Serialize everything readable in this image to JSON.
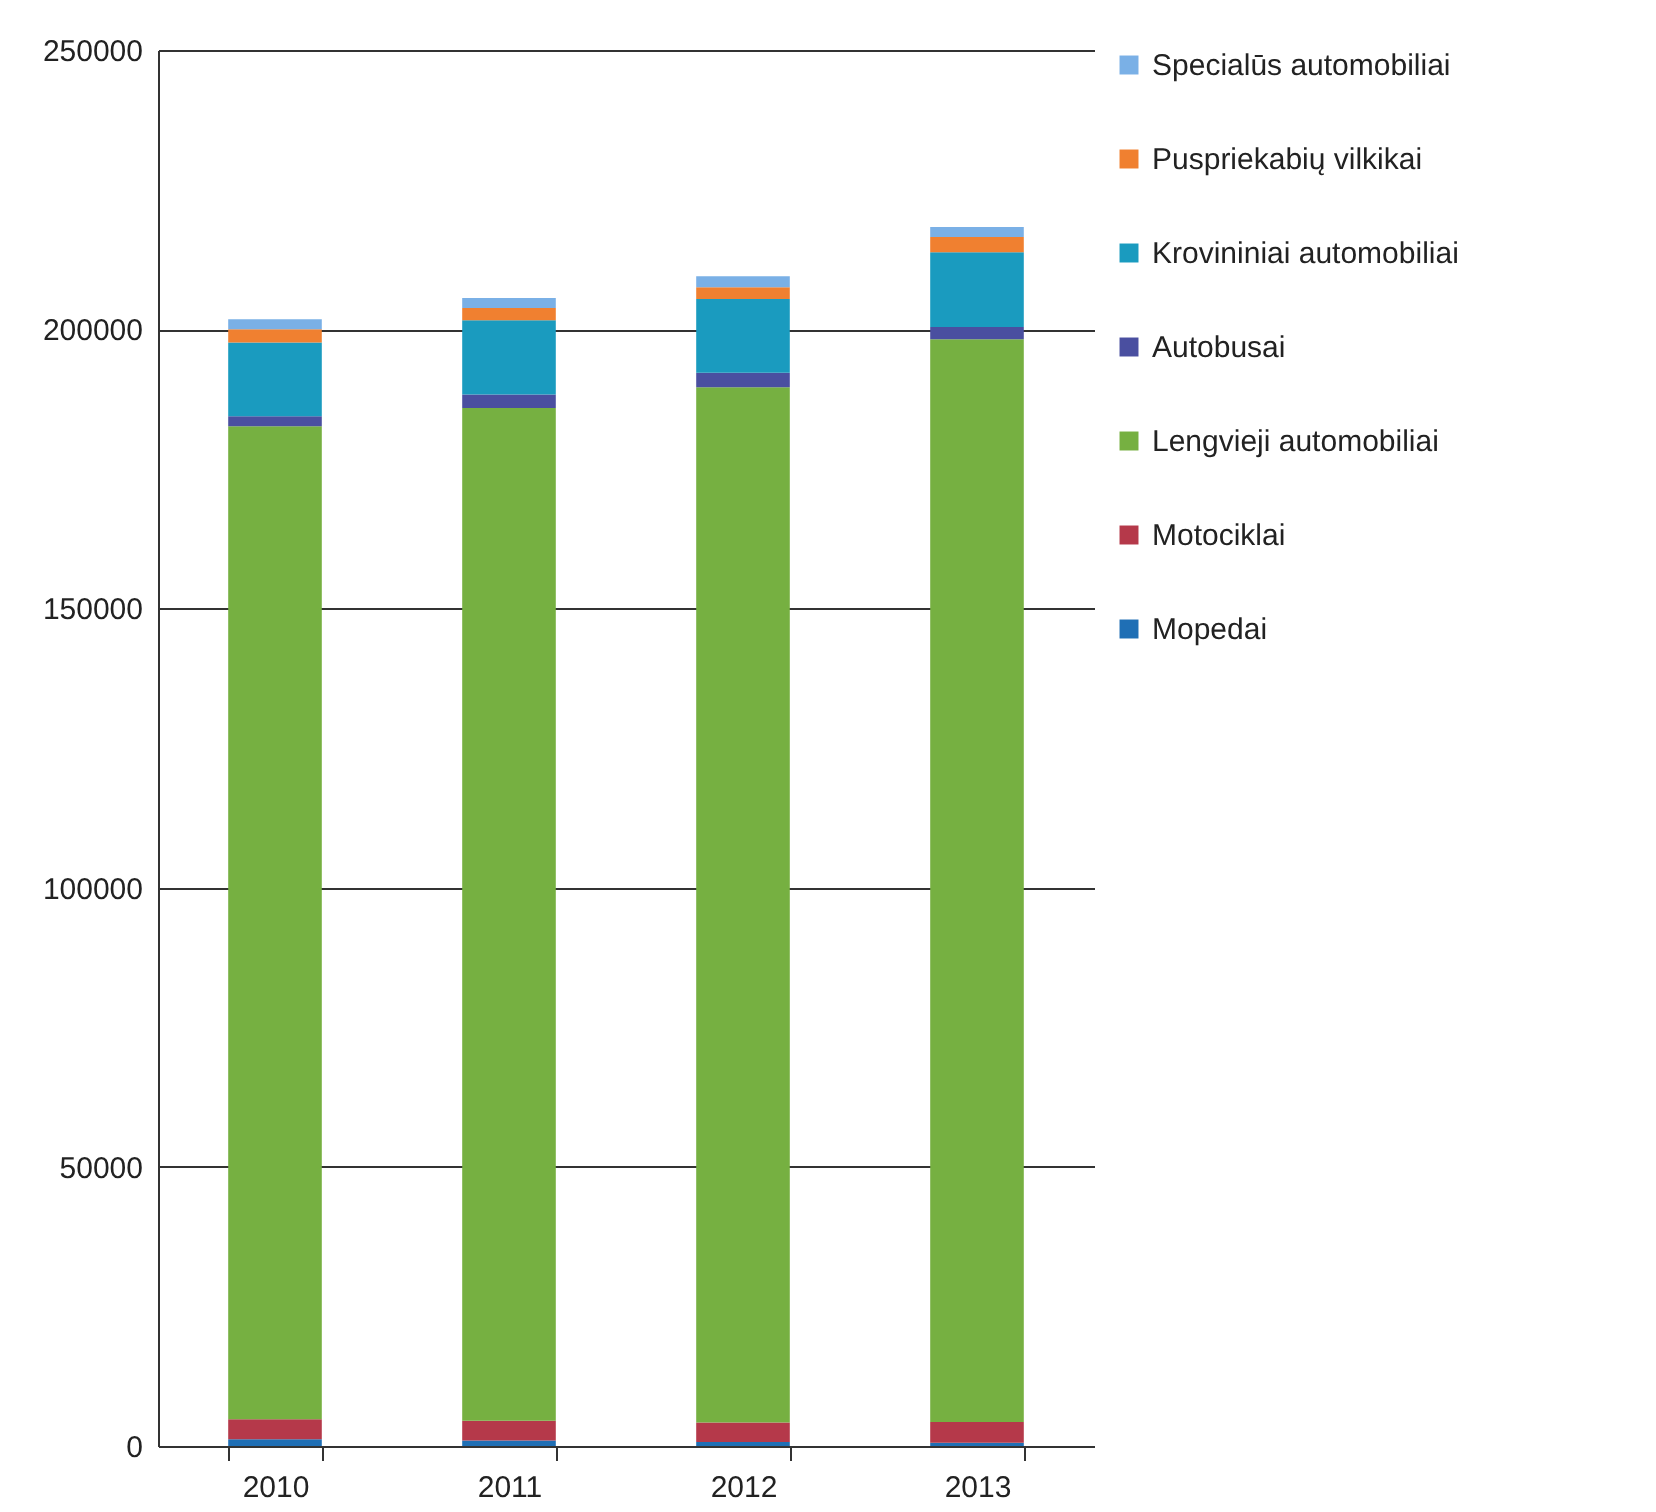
{
  "chart_data": {
    "type": "bar",
    "stacked": true,
    "categories": [
      "2010",
      "2011",
      "2012",
      "2013"
    ],
    "series": [
      {
        "name": "Mopedai",
        "color": "#1f6fb5",
        "values": [
          1200,
          1000,
          700,
          600
        ]
      },
      {
        "name": "Motociklai",
        "color": "#b5394a",
        "values": [
          3600,
          3500,
          3500,
          3700
        ]
      },
      {
        "name": "Lengvieji automobiliai",
        "color": "#76b041",
        "values": [
          177800,
          181400,
          185400,
          193900
        ]
      },
      {
        "name": "Autobusai",
        "color": "#4a4fa0",
        "values": [
          1800,
          2400,
          2600,
          2200
        ]
      },
      {
        "name": "Krovininiai automobiliai",
        "color": "#1a9bbf",
        "values": [
          13200,
          13300,
          13200,
          13400
        ]
      },
      {
        "name": "Puspriekabių vilkikai",
        "color": "#f08030",
        "values": [
          2400,
          2200,
          2100,
          2700
        ]
      },
      {
        "name": "Specialūs automobiliai",
        "color": "#7ab0e6",
        "values": [
          1800,
          1800,
          2000,
          1800
        ]
      }
    ],
    "ylim": [
      0,
      250000
    ],
    "yticks": [
      0,
      50000,
      100000,
      150000,
      200000,
      250000
    ],
    "grid": "y",
    "legend": "right"
  }
}
